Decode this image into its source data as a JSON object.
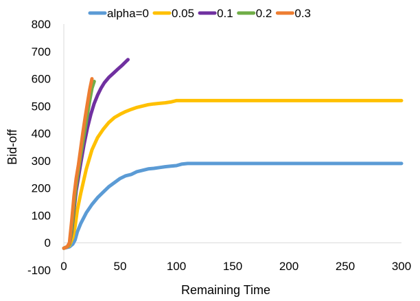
{
  "chart_data": {
    "type": "line",
    "xlabel": "Remaining Time",
    "ylabel": "Bid-off",
    "xlim": [
      0,
      300
    ],
    "ylim": [
      -100,
      800
    ],
    "xticks": [
      "0",
      "50",
      "100",
      "150",
      "200",
      "250",
      "300"
    ],
    "yticks": [
      "-100",
      "0",
      "100",
      "200",
      "300",
      "400",
      "500",
      "600",
      "700",
      "800"
    ],
    "grid": false,
    "legend_position": "top",
    "series": [
      {
        "name": "alpha=0",
        "color": "#5B9BD5",
        "x": [
          0,
          5,
          8,
          10,
          12,
          15,
          20,
          25,
          30,
          35,
          40,
          45,
          50,
          55,
          60,
          65,
          70,
          75,
          80,
          85,
          90,
          95,
          100,
          105,
          110,
          150,
          200,
          250,
          300
        ],
        "y": [
          -20,
          -15,
          -5,
          10,
          40,
          70,
          110,
          140,
          165,
          185,
          205,
          220,
          235,
          245,
          250,
          260,
          265,
          270,
          272,
          275,
          278,
          280,
          282,
          288,
          290,
          290,
          290,
          290,
          290
        ]
      },
      {
        "name": "0.05",
        "color": "#FFC000",
        "x": [
          0,
          5,
          8,
          10,
          12,
          15,
          20,
          25,
          30,
          35,
          40,
          45,
          50,
          55,
          60,
          65,
          70,
          75,
          80,
          85,
          90,
          95,
          100,
          150,
          200,
          250,
          300
        ],
        "y": [
          -20,
          -10,
          20,
          60,
          120,
          180,
          270,
          340,
          385,
          415,
          440,
          458,
          470,
          480,
          488,
          495,
          500,
          505,
          508,
          510,
          512,
          515,
          520,
          520,
          520,
          520,
          520
        ]
      },
      {
        "name": "0.1",
        "color": "#7030A0",
        "x": [
          0,
          3,
          5,
          7,
          9,
          11,
          13,
          15,
          18,
          21,
          24,
          27,
          30,
          33,
          36,
          40,
          44,
          48,
          52,
          55,
          57
        ],
        "y": [
          -20,
          -15,
          -5,
          40,
          120,
          190,
          240,
          290,
          360,
          420,
          470,
          510,
          540,
          565,
          585,
          605,
          620,
          635,
          650,
          662,
          670
        ]
      },
      {
        "name": "0.2",
        "color": "#70AD47",
        "x": [
          0,
          3,
          5,
          7,
          9,
          11,
          13,
          15,
          17,
          19,
          21,
          23,
          25,
          27
        ],
        "y": [
          -20,
          -15,
          -5,
          50,
          140,
          210,
          265,
          320,
          370,
          420,
          470,
          520,
          565,
          590
        ]
      },
      {
        "name": "0.3",
        "color": "#ED7D31",
        "x": [
          0,
          3,
          5,
          7,
          9,
          11,
          13,
          15,
          17,
          19,
          21,
          23,
          25
        ],
        "y": [
          -20,
          -15,
          0,
          80,
          170,
          235,
          285,
          345,
          405,
          460,
          510,
          560,
          600
        ]
      }
    ]
  }
}
